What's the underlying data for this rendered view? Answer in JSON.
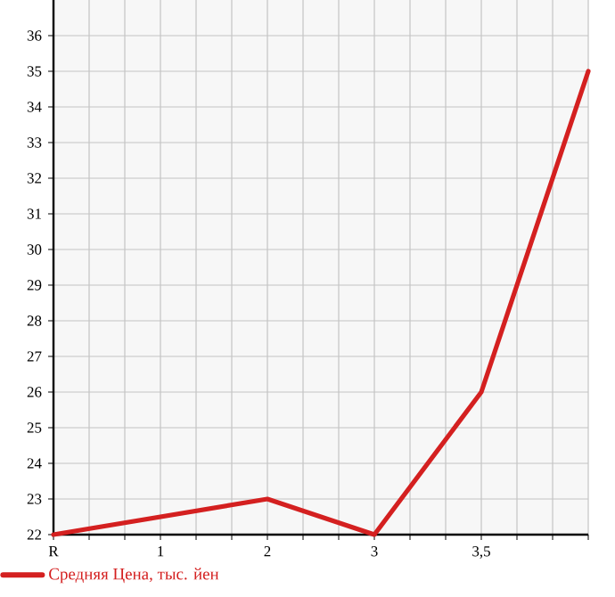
{
  "chart_data": {
    "type": "line",
    "categories": [
      "R",
      "1",
      "2",
      "3",
      "3,5",
      null
    ],
    "series": [
      {
        "name": "Средняя Цена, тыс. йен",
        "color": "#d42020",
        "values": [
          22,
          22.5,
          23,
          22,
          26,
          35
        ]
      }
    ],
    "ylim": [
      22,
      37
    ],
    "yticks": [
      22,
      23,
      24,
      25,
      26,
      27,
      28,
      29,
      30,
      31,
      32,
      33,
      34,
      35,
      36
    ],
    "grid": true,
    "legend": "bottom left"
  }
}
